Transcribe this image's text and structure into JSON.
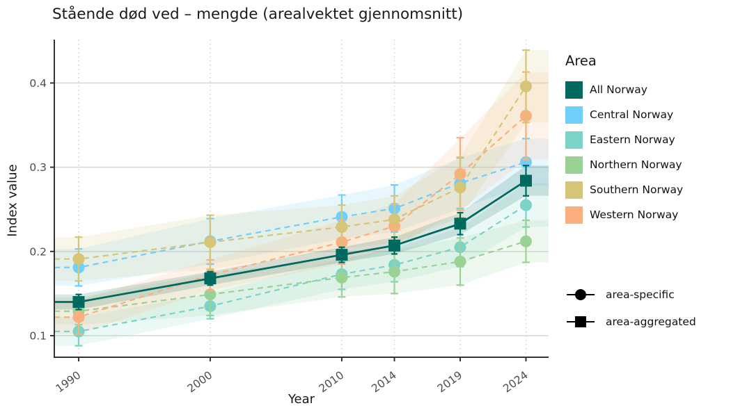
{
  "chart_data": {
    "type": "line",
    "title": "Stående død ved – mengde (arealvektet gjennomsnitt)",
    "xlabel": "Year",
    "ylabel": "Index value",
    "x": [
      1990,
      2000,
      2010,
      2014,
      2019,
      2024
    ],
    "x_tick_labels": [
      "1990",
      "2000",
      "2010",
      "2014",
      "2019",
      "2024"
    ],
    "y_ticks": [
      0.1,
      0.2,
      0.3,
      0.4
    ],
    "y_tick_labels": [
      "0.1",
      "0.2",
      "0.3",
      "0.4"
    ],
    "xlim": [
      1988.15,
      2025.72
    ],
    "ylim": [
      0.0744,
      0.4515
    ],
    "grid": {
      "horizontal": "solid",
      "vertical": "dotted"
    },
    "legend_title": "Area",
    "legend_position": "right",
    "marker_legend": [
      {
        "label": "area-specific",
        "marker": "circle"
      },
      {
        "label": "area-aggregated",
        "marker": "square"
      }
    ],
    "series": [
      {
        "name": "All Norway",
        "color": "#006960",
        "marker": "square",
        "line": "solid",
        "values": [
          0.14,
          0.168,
          0.196,
          0.207,
          0.233,
          0.284
        ],
        "err": [
          0.009,
          0.008,
          0.009,
          0.01,
          0.013,
          0.018
        ]
      },
      {
        "name": "Central Norway",
        "color": "#70CFFA",
        "marker": "circle",
        "line": "dashed",
        "values": [
          0.181,
          0.212,
          0.241,
          0.251,
          0.281,
          0.306
        ],
        "err": [
          0.022,
          0.027,
          0.026,
          0.028,
          0.03,
          0.028
        ]
      },
      {
        "name": "Eastern Norway",
        "color": "#7BD3C8",
        "marker": "circle",
        "line": "dashed",
        "values": [
          0.105,
          0.135,
          0.173,
          0.184,
          0.205,
          0.255
        ],
        "err": [
          0.017,
          0.015,
          0.018,
          0.02,
          0.023,
          0.026
        ]
      },
      {
        "name": "Northern Norway",
        "color": "#99D294",
        "marker": "circle",
        "line": "dashed",
        "values": [
          0.129,
          0.149,
          0.169,
          0.176,
          0.188,
          0.212
        ],
        "err": [
          0.016,
          0.025,
          0.023,
          0.026,
          0.028,
          0.025
        ]
      },
      {
        "name": "Southern Norway",
        "color": "#D6C577",
        "marker": "circle",
        "line": "dashed",
        "values": [
          0.191,
          0.211,
          0.229,
          0.238,
          0.276,
          0.396
        ],
        "err": [
          0.026,
          0.032,
          0.026,
          0.028,
          0.036,
          0.043
        ]
      },
      {
        "name": "Western Norway",
        "color": "#FCAF7E",
        "marker": "circle",
        "line": "dashed",
        "values": [
          0.122,
          0.172,
          0.211,
          0.23,
          0.292,
          0.361
        ],
        "err": [
          0.02,
          0.018,
          0.026,
          0.026,
          0.043,
          0.052
        ]
      }
    ],
    "draw_order": [
      1,
      2,
      3,
      5,
      4,
      0
    ],
    "colors": {
      "axis": "#333333",
      "tick_text": "#4d4d4d",
      "grid_h": "#d9d9d9",
      "grid_v": "#c9c9c9",
      "legend_marker": "#000000",
      "ribbon_opacity": 0.16
    }
  }
}
